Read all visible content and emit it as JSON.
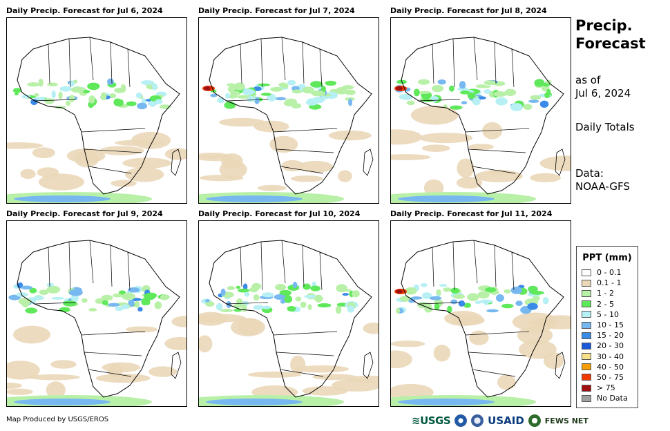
{
  "panels": [
    {
      "title": "Daily Precip. Forecast for Jul 6, 2024"
    },
    {
      "title": "Daily Precip. Forecast for Jul 7, 2024"
    },
    {
      "title": "Daily Precip. Forecast for Jul 8, 2024"
    },
    {
      "title": "Daily Precip. Forecast for Jul 9, 2024"
    },
    {
      "title": "Daily Precip. Forecast for Jul 10, 2024"
    },
    {
      "title": "Daily Precip. Forecast for Jul 11, 2024"
    }
  ],
  "sidebar": {
    "title_line1": "Precip.",
    "title_line2": "Forecast",
    "as_of_line1": "as of",
    "as_of_line2": "Jul 6, 2024",
    "totals": "Daily Totals",
    "data_line1": "Data:",
    "data_line2": "NOAA-GFS"
  },
  "legend": {
    "title": "PPT (mm)",
    "items": [
      {
        "label": "0 - 0.1",
        "color": "#ffffff"
      },
      {
        "label": "0.1 - 1",
        "color": "#ead7b8"
      },
      {
        "label": "1 - 2",
        "color": "#b8f0a8"
      },
      {
        "label": "2 - 5",
        "color": "#5ee85a"
      },
      {
        "label": "5 - 10",
        "color": "#b6f0f4"
      },
      {
        "label": "10 - 15",
        "color": "#78b8f0"
      },
      {
        "label": "15 - 20",
        "color": "#3a8ae8"
      },
      {
        "label": "20 - 30",
        "color": "#1a5ad8"
      },
      {
        "label": "30 - 40",
        "color": "#f6e08a"
      },
      {
        "label": "40 - 50",
        "color": "#f5a000"
      },
      {
        "label": "50 - 75",
        "color": "#f03a00"
      },
      {
        "label": "> 75",
        "color": "#a01010"
      },
      {
        "label": "No Data",
        "color": "#a0a0a0"
      }
    ]
  },
  "footer": {
    "credit": "Map Produced by USGS/EROS",
    "logo_usgs": "≋USGS",
    "logo_usaid": "USAID",
    "logo_fews": "FEWS NET"
  }
}
